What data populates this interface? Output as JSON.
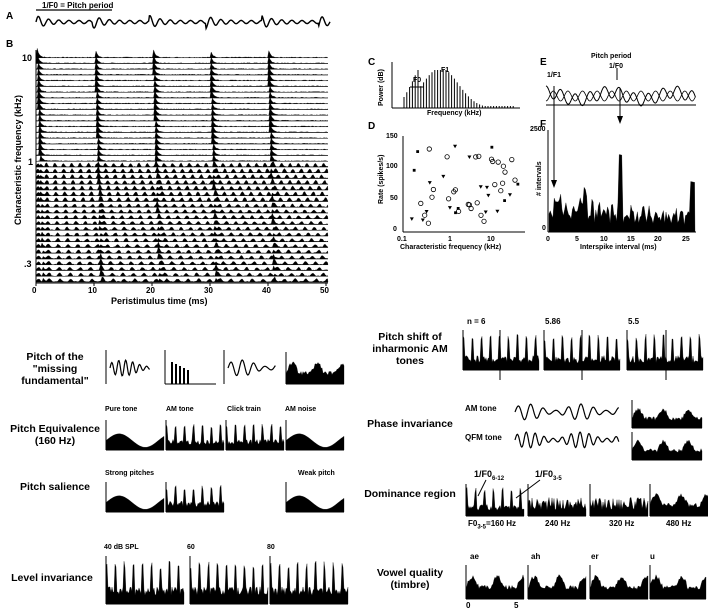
{
  "figure_top": {
    "panel_labels": {
      "a": "A",
      "b": "B",
      "c": "C",
      "d": "D",
      "e": "E",
      "f": "F"
    },
    "a": {
      "pitch_label": "1/F0 = Pitch period"
    },
    "b": {
      "ylabel": "Characteristic frequency (kHz)",
      "xlabel": "Peristimulus time (ms)",
      "yticks": [
        "10",
        "1",
        ".3"
      ],
      "xticks": [
        "0",
        "10",
        "20",
        "30",
        "40",
        "50"
      ]
    },
    "c": {
      "ylabel": "Power (dB)",
      "xlabel": "Frequency (kHz)",
      "f0_label": "F0",
      "f1_label": "F1"
    },
    "d": {
      "ylabel": "Rate (spikes/s)",
      "xlabel": "Characteristic frequency (kHz)",
      "yticks": [
        "150",
        "100",
        "50",
        "0"
      ],
      "xticks": [
        "0.1",
        "1",
        "10"
      ]
    },
    "e": {
      "title": "Pitch period",
      "f0_label": "1/F0",
      "f1_label": "1/F1"
    },
    "f": {
      "ylabel": "# intervals",
      "xlabel": "Interspike interval (ms)",
      "yticks": [
        "2500",
        "0"
      ],
      "xticks": [
        "0",
        "5",
        "10",
        "15",
        "20",
        "25"
      ]
    }
  },
  "figure_bottom": {
    "left_rows": [
      {
        "label": "Pitch of the \"missing fundamental\""
      },
      {
        "label": "Pitch Equivalence (160 Hz)",
        "panels": [
          "Pure tone",
          "AM tone",
          "Click train",
          "AM noise"
        ]
      },
      {
        "label": "Pitch salience",
        "panels": [
          "Strong pitches",
          "Weak pitch"
        ]
      },
      {
        "label": "Level invariance",
        "panels": [
          "40 dB SPL",
          "60",
          "80"
        ]
      }
    ],
    "right_rows": [
      {
        "label": "Pitch shift of inharmonic AM tones",
        "panels": [
          "n = 6",
          "5.86",
          "5.5"
        ]
      },
      {
        "label": "Phase invariance",
        "panels": [
          "AM tone",
          "QFM tone"
        ]
      },
      {
        "label": "Dominance region",
        "panels": [
          "F0 3-5 =160 Hz",
          "240 Hz",
          "320 Hz",
          "480 Hz"
        ],
        "annotations": [
          "1/F0 6-12",
          "1/F0 3-5"
        ]
      },
      {
        "label": "Vowel quality (timbre)",
        "panels": [
          "ae",
          "ah",
          "er",
          "u"
        ],
        "xticks": [
          "0",
          "5"
        ]
      }
    ]
  }
}
